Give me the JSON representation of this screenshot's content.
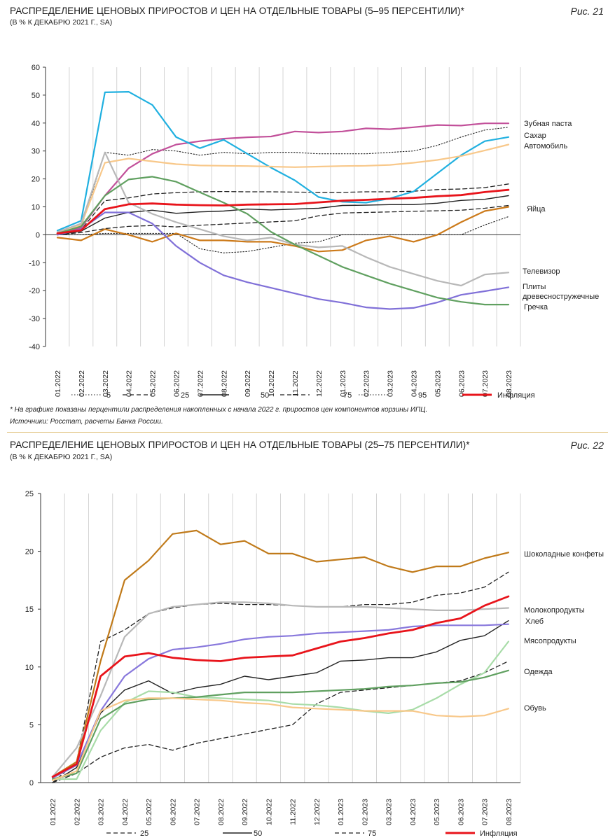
{
  "figure21": {
    "title": "РАСПРЕДЕЛЕНИЕ ЦЕНОВЫХ ПРИРОСТОВ И ЦЕН НА ОТДЕЛЬНЫЕ ТОВАРЫ (5–95 ПЕРСЕНТИЛИ)*",
    "subtitle": "(В % К ДЕКАБРЮ 2021 Г., SA)",
    "number": "Рис. 21",
    "note": "* На графике показаны перцентили распределения накопленных с начала 2022 г. приростов цен компонентов корзины ИПЦ.",
    "source": "Источники: Росстат, расчеты Банка России."
  },
  "figure22": {
    "title": "РАСПРЕДЕЛЕНИЕ ЦЕНОВЫХ ПРИРОСТОВ И ЦЕН НА ОТДЕЛЬНЫЕ ТОВАРЫ (25–75 ПЕРСЕНТИЛИ)*",
    "subtitle": "(В % К ДЕКАБРЮ 2021 Г., SA)",
    "number": "Рис. 22"
  },
  "chart_data": [
    {
      "type": "line",
      "title": "Распределение ценовых приростов и цен на отдельные товары (5–95 перцентили)",
      "ylim": [
        -40,
        60
      ],
      "yticks": [
        60,
        50,
        40,
        30,
        20,
        10,
        0,
        -10,
        -20,
        -30,
        -40
      ],
      "categories": [
        "01.2022",
        "02.2022",
        "03.2022",
        "04.2022",
        "05.2022",
        "06.2022",
        "07.2022",
        "08.2022",
        "09.2022",
        "10.2022",
        "11.2022",
        "12.2022",
        "01.2023",
        "02.2023",
        "03.2023",
        "04.2023",
        "05.2023",
        "06.2023",
        "07.2023",
        "08.2023"
      ],
      "series": [
        {
          "name": "5",
          "style": "dotted",
          "color": "#222222",
          "width": 1.1,
          "in_legend": true,
          "values": [
            0,
            0,
            0.5,
            0.5,
            0.5,
            0.5,
            -5,
            -6.5,
            -6,
            -4.5,
            -3,
            -2.5,
            0,
            0,
            0,
            0,
            0,
            0,
            3.5,
            6.5
          ]
        },
        {
          "name": "25",
          "style": "dashed",
          "color": "#222222",
          "width": 1.3,
          "in_legend": true,
          "values": [
            0,
            0.8,
            2.2,
            3.0,
            3.3,
            2.8,
            3.4,
            3.8,
            4.2,
            4.6,
            5.0,
            6.8,
            7.8,
            8.0,
            8.2,
            8.4,
            8.6,
            8.8,
            9.5,
            10.5
          ]
        },
        {
          "name": "50",
          "style": "solid",
          "color": "#222222",
          "width": 1.4,
          "in_legend": true,
          "values": [
            0,
            1.3,
            6.0,
            8.0,
            8.8,
            7.7,
            8.2,
            8.5,
            9.2,
            8.9,
            9.2,
            9.5,
            10.5,
            10.6,
            10.8,
            10.8,
            11.3,
            12.3,
            12.7,
            14.0
          ]
        },
        {
          "name": "75",
          "style": "dashed",
          "color": "#222222",
          "width": 1.3,
          "in_legend": true,
          "values": [
            0,
            1.8,
            12.2,
            13.2,
            14.6,
            15.1,
            15.4,
            15.5,
            15.4,
            15.4,
            15.3,
            15.2,
            15.2,
            15.4,
            15.4,
            15.6,
            16.2,
            16.4,
            16.9,
            18.2
          ]
        },
        {
          "name": "95",
          "style": "dotted",
          "color": "#222222",
          "width": 1.1,
          "in_legend": true,
          "values": [
            0,
            2.5,
            29.5,
            28.5,
            30.5,
            30.0,
            28.5,
            29.5,
            29.0,
            29.5,
            29.5,
            29.0,
            29.0,
            29.0,
            29.5,
            30.0,
            32.0,
            35.0,
            37.5,
            38.5
          ]
        },
        {
          "name": "Зубная паста",
          "style": "solid",
          "color": "#c2509a",
          "width": 2.2,
          "in_legend": false,
          "values": [
            0.5,
            2.5,
            14.0,
            23.8,
            29.0,
            32.3,
            33.5,
            34.4,
            34.9,
            35.2,
            37.0,
            36.6,
            37.0,
            38.1,
            37.8,
            38.5,
            39.3,
            39.1,
            39.9,
            39.9
          ]
        },
        {
          "name": "Сахар",
          "style": "solid",
          "color": "#20b0e0",
          "width": 2.2,
          "in_legend": false,
          "values": [
            1.5,
            5.0,
            51.0,
            51.2,
            46.5,
            35.0,
            31.0,
            34.0,
            29.0,
            24.0,
            19.5,
            13.5,
            11.8,
            11.5,
            13.0,
            15.5,
            22.0,
            28.5,
            33.5,
            35.0
          ]
        },
        {
          "name": "Автомобиль",
          "style": "solid",
          "color": "#f8c88a",
          "width": 2.2,
          "in_legend": false,
          "values": [
            1.0,
            3.5,
            25.8,
            27.3,
            26.3,
            25.3,
            24.8,
            24.7,
            24.6,
            24.4,
            24.2,
            24.4,
            24.6,
            24.7,
            25.0,
            25.8,
            26.8,
            28.2,
            30.2,
            32.3
          ]
        },
        {
          "name": "Яйца",
          "style": "solid",
          "color": "#cc7a1a",
          "width": 2.2,
          "in_legend": false,
          "values": [
            -1,
            -2,
            2,
            0,
            -2.5,
            0.5,
            -2,
            -2,
            -2.5,
            -2.5,
            -4,
            -6,
            -5.5,
            -2,
            -0.5,
            -2.5,
            0,
            4.5,
            8.5,
            10
          ]
        },
        {
          "name": "Телевизор",
          "style": "solid",
          "color": "#b8b8b8",
          "width": 2.2,
          "in_legend": false,
          "values": [
            1,
            4,
            29.5,
            11.5,
            7.5,
            4.5,
            2,
            -0.5,
            -2,
            -1,
            -3.5,
            -4.5,
            -4,
            -8,
            -11.5,
            -14,
            -16.5,
            -18.2,
            -14.2,
            -13.5
          ]
        },
        {
          "name": "Плиты древесностружечные",
          "style": "solid",
          "color": "#8070d8",
          "width": 2.2,
          "in_legend": false,
          "values": [
            0,
            2,
            8,
            8,
            4,
            -4,
            -10,
            -14.5,
            -17,
            -19,
            -21,
            -23,
            -24.3,
            -26,
            -26.6,
            -26.2,
            -24.2,
            -21.5,
            -20.2,
            -18.8
          ]
        },
        {
          "name": "Гречка",
          "style": "solid",
          "color": "#60a060",
          "width": 2.2,
          "in_legend": false,
          "values": [
            0.5,
            3,
            14,
            19.8,
            20.8,
            19,
            15.2,
            11.5,
            7.5,
            1,
            -3.5,
            -7.5,
            -11.5,
            -14.5,
            -17.5,
            -20,
            -22.5,
            -24,
            -25,
            -25
          ]
        },
        {
          "name": "Инфляция",
          "style": "solid",
          "color": "#e8141b",
          "width": 2.8,
          "in_legend": true,
          "values": [
            0.5,
            1.6,
            9.2,
            10.9,
            11.2,
            10.8,
            10.6,
            10.5,
            10.8,
            10.9,
            11.0,
            11.6,
            12.2,
            12.5,
            12.9,
            13.2,
            13.8,
            14.2,
            15.3,
            16.1
          ]
        }
      ],
      "line_labels": [
        "Зубная паста",
        "Сахар",
        "Автомобиль",
        "Яйца",
        "Телевизор",
        "Плиты",
        "древесностружечные",
        "Гречка"
      ],
      "legend": [
        "5",
        "25",
        "50",
        "75",
        "95",
        "Инфляция"
      ]
    },
    {
      "type": "line",
      "title": "Распределение ценовых приростов и цен на отдельные товары (25–75 перцентили)",
      "ylim": [
        0,
        25
      ],
      "yticks": [
        25,
        20,
        15,
        10,
        5,
        0
      ],
      "categories": [
        "01.2022",
        "02.2022",
        "03.2022",
        "04.2022",
        "05.2022",
        "06.2022",
        "07.2022",
        "08.2022",
        "09.2022",
        "10.2022",
        "11.2022",
        "12.2022",
        "01.2023",
        "02.2023",
        "03.2023",
        "04.2023",
        "05.2023",
        "06.2023",
        "07.2023",
        "08.2023"
      ],
      "series": [
        {
          "name": "25",
          "style": "dashed",
          "color": "#222222",
          "width": 1.3,
          "in_legend": true,
          "values": [
            0,
            0.8,
            2.2,
            3.0,
            3.3,
            2.8,
            3.4,
            3.8,
            4.2,
            4.6,
            5.0,
            6.8,
            7.8,
            8.0,
            8.2,
            8.4,
            8.6,
            8.8,
            9.5,
            10.5
          ]
        },
        {
          "name": "50",
          "style": "solid",
          "color": "#222222",
          "width": 1.4,
          "in_legend": true,
          "values": [
            0,
            1.3,
            6.0,
            8.0,
            8.8,
            7.7,
            8.2,
            8.5,
            9.2,
            8.9,
            9.2,
            9.5,
            10.5,
            10.6,
            10.8,
            10.8,
            11.3,
            12.3,
            12.7,
            14.0
          ]
        },
        {
          "name": "75",
          "style": "dashed",
          "color": "#222222",
          "width": 1.3,
          "in_legend": true,
          "values": [
            0,
            1.8,
            12.2,
            13.2,
            14.6,
            15.1,
            15.4,
            15.5,
            15.4,
            15.4,
            15.3,
            15.2,
            15.2,
            15.4,
            15.4,
            15.6,
            16.2,
            16.4,
            16.9,
            18.2
          ]
        },
        {
          "name": "Шоколадные конфеты",
          "style": "solid",
          "color": "#c07a1a",
          "width": 2.2,
          "in_legend": false,
          "values": [
            0.5,
            1.8,
            10.5,
            17.5,
            19.2,
            21.5,
            21.8,
            20.6,
            20.9,
            19.8,
            19.8,
            19.1,
            19.3,
            19.5,
            18.7,
            18.2,
            18.7,
            18.7,
            19.4,
            19.9
          ]
        },
        {
          "name": "Молокопродукты",
          "style": "solid",
          "color": "#b8b8b8",
          "width": 2.2,
          "in_legend": false,
          "values": [
            0.5,
            3.0,
            7.5,
            12.6,
            14.6,
            15.2,
            15.4,
            15.6,
            15.6,
            15.5,
            15.3,
            15.2,
            15.2,
            15.2,
            15.1,
            15.0,
            14.9,
            14.9,
            15.0,
            15.1
          ]
        },
        {
          "name": "Хлеб",
          "style": "solid",
          "color": "#8878dc",
          "width": 2.2,
          "in_legend": false,
          "values": [
            0.4,
            1.5,
            6.2,
            9.2,
            10.7,
            11.5,
            11.7,
            12.0,
            12.4,
            12.6,
            12.7,
            12.9,
            13.0,
            13.1,
            13.2,
            13.5,
            13.6,
            13.6,
            13.6,
            13.7
          ]
        },
        {
          "name": "Мясопродукты",
          "style": "solid",
          "color": "#a8dca8",
          "width": 2.2,
          "in_legend": false,
          "values": [
            0.3,
            0.3,
            4.5,
            6.9,
            7.9,
            7.8,
            7.4,
            7.3,
            7.2,
            7.1,
            6.8,
            6.7,
            6.5,
            6.2,
            6.0,
            6.3,
            7.3,
            8.5,
            9.5,
            12.2
          ]
        },
        {
          "name": "Одежда",
          "style": "solid",
          "color": "#60a060",
          "width": 2.2,
          "in_legend": false,
          "values": [
            0.3,
            0.8,
            5.5,
            6.8,
            7.2,
            7.3,
            7.4,
            7.6,
            7.8,
            7.8,
            7.8,
            7.9,
            8.0,
            8.1,
            8.3,
            8.4,
            8.6,
            8.7,
            9.1,
            9.7
          ]
        },
        {
          "name": "Обувь",
          "style": "solid",
          "color": "#f8c88a",
          "width": 2.2,
          "in_legend": false,
          "values": [
            0.2,
            1.0,
            6.2,
            7.1,
            7.3,
            7.3,
            7.2,
            7.1,
            6.9,
            6.8,
            6.5,
            6.4,
            6.3,
            6.2,
            6.2,
            6.2,
            5.8,
            5.7,
            5.8,
            6.4
          ]
        },
        {
          "name": "Инфляция",
          "style": "solid",
          "color": "#e8141b",
          "width": 2.8,
          "in_legend": true,
          "values": [
            0.5,
            1.6,
            9.2,
            10.9,
            11.2,
            10.8,
            10.6,
            10.5,
            10.8,
            10.9,
            11.0,
            11.6,
            12.2,
            12.5,
            12.9,
            13.2,
            13.8,
            14.2,
            15.3,
            16.1
          ]
        }
      ],
      "line_labels": [
        "Шоколадные конфеты",
        "Молокопродукты",
        "Хлеб",
        "Мясопродукты",
        "Одежда",
        "Обувь"
      ],
      "legend": [
        "25",
        "50",
        "75",
        "Инфляция"
      ]
    }
  ]
}
